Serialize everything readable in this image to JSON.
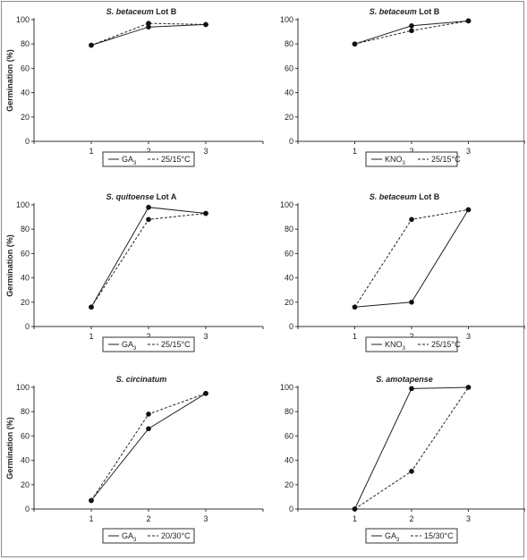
{
  "figure": {
    "y_axis_label": "Germination (%)"
  },
  "chart_data": [
    {
      "type": "line",
      "title_italic": "S. betaceum",
      "title_rest": " Lot B",
      "x": [
        1,
        2,
        3
      ],
      "xlim": [
        0,
        4
      ],
      "ylim": [
        0,
        100
      ],
      "yticks": [
        0,
        20,
        40,
        60,
        80,
        100
      ],
      "ylabel": "Germination (%)",
      "series": [
        {
          "name": "GA3",
          "name_main": "GA",
          "name_sub": "3",
          "style": "solid",
          "values": [
            79,
            94,
            96
          ]
        },
        {
          "name": "25/15°C",
          "style": "dashed",
          "values": [
            79,
            97,
            96
          ]
        }
      ]
    },
    {
      "type": "line",
      "title_italic": "S. betaceum",
      "title_rest": " Lot B",
      "x": [
        1,
        2,
        3
      ],
      "xlim": [
        0,
        4
      ],
      "ylim": [
        0,
        100
      ],
      "yticks": [
        0,
        20,
        40,
        60,
        80,
        100
      ],
      "ylabel": "",
      "series": [
        {
          "name": "KNO3",
          "name_main": "KNO",
          "name_sub": "3",
          "style": "solid",
          "values": [
            80,
            95,
            99
          ]
        },
        {
          "name": "25/15°C",
          "style": "dashed",
          "values": [
            80,
            91,
            99
          ]
        }
      ]
    },
    {
      "type": "line",
      "title_italic": "S. quitoense",
      "title_rest": " Lot A",
      "x": [
        1,
        2,
        3
      ],
      "xlim": [
        0,
        4
      ],
      "ylim": [
        0,
        100
      ],
      "yticks": [
        0,
        20,
        40,
        60,
        80,
        100
      ],
      "ylabel": "Germination (%)",
      "series": [
        {
          "name": "GA3",
          "name_main": "GA",
          "name_sub": "3",
          "style": "solid",
          "values": [
            16,
            98,
            93
          ]
        },
        {
          "name": "25/15°C",
          "style": "dashed",
          "values": [
            16,
            88,
            93
          ]
        }
      ]
    },
    {
      "type": "line",
      "title_italic": "S. betaceum",
      "title_rest": " Lot B",
      "x": [
        1,
        2,
        3
      ],
      "xlim": [
        0,
        4
      ],
      "ylim": [
        0,
        100
      ],
      "yticks": [
        0,
        20,
        40,
        60,
        80,
        100
      ],
      "ylabel": "",
      "series": [
        {
          "name": "KNO3",
          "name_main": "KNO",
          "name_sub": "3",
          "style": "solid",
          "values": [
            16,
            20,
            96
          ]
        },
        {
          "name": "25/15°C",
          "style": "dashed",
          "values": [
            16,
            88,
            96
          ]
        }
      ]
    },
    {
      "type": "line",
      "title_italic": "S. circinatum",
      "title_rest": "",
      "x": [
        1,
        2,
        3
      ],
      "xlim": [
        0,
        4
      ],
      "ylim": [
        0,
        100
      ],
      "yticks": [
        0,
        20,
        40,
        60,
        80,
        100
      ],
      "ylabel": "Germination (%)",
      "series": [
        {
          "name": "GA3",
          "name_main": "GA",
          "name_sub": "3",
          "style": "solid",
          "values": [
            7,
            66,
            95
          ]
        },
        {
          "name": "20/30°C",
          "style": "dashed",
          "values": [
            7,
            78,
            95
          ]
        }
      ]
    },
    {
      "type": "line",
      "title_italic": "S. amotapense",
      "title_rest": "",
      "x": [
        1,
        2,
        3
      ],
      "xlim": [
        0,
        4
      ],
      "ylim": [
        0,
        100
      ],
      "yticks": [
        0,
        20,
        40,
        60,
        80,
        100
      ],
      "ylabel": "",
      "series": [
        {
          "name": "GA3",
          "name_main": "GA",
          "name_sub": "3",
          "style": "solid",
          "values": [
            0,
            99,
            100
          ]
        },
        {
          "name": "15/30°C",
          "style": "dashed",
          "values": [
            0,
            31,
            100
          ]
        }
      ]
    }
  ]
}
